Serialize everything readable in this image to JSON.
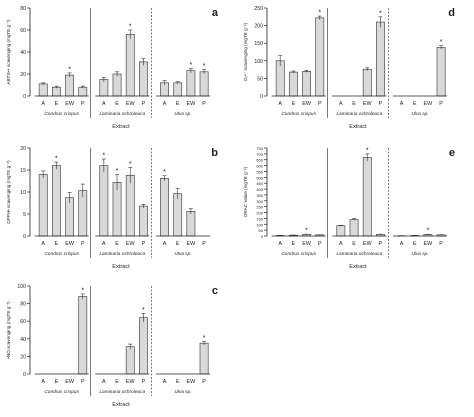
{
  "figure": {
    "colors": {
      "bar": "#d9d9d9",
      "edge": "#333333",
      "axis": "#222222",
      "text": "#222222"
    }
  },
  "chart_data": [
    {
      "id": "a",
      "panel_label": "a",
      "type": "bar",
      "ylabel": "ABTS•+ scavenging (mgTE g⁻¹)",
      "ylim": [
        0,
        80
      ],
      "yticks": [
        0,
        20,
        40,
        60,
        80
      ],
      "categories": [
        "A",
        "E",
        "EW",
        "P",
        "A",
        "E",
        "EW",
        "P",
        "A",
        "E",
        "EW",
        "P"
      ],
      "groups": [
        "Condrus crispus",
        "Laminaria ochroleuca",
        "Ulva sp."
      ],
      "xlabel": "Extract",
      "values": [
        11,
        8,
        19,
        8,
        15,
        20,
        56,
        31,
        12,
        12,
        23,
        22
      ],
      "errors": [
        1,
        1,
        2,
        1,
        2,
        2,
        4,
        3,
        2,
        1,
        2,
        2
      ],
      "significance": [
        false,
        false,
        true,
        false,
        false,
        false,
        true,
        false,
        false,
        false,
        true,
        true
      ]
    },
    {
      "id": "b",
      "panel_label": "b",
      "type": "bar",
      "ylabel": "DPPH• scavenging (mgTE g⁻¹)",
      "ylim": [
        0,
        20
      ],
      "yticks": [
        0,
        5,
        10,
        15,
        20
      ],
      "categories": [
        "A",
        "E",
        "EW",
        "P",
        "A",
        "E",
        "EW",
        "P",
        "A",
        "E",
        "EW",
        "P"
      ],
      "groups": [
        "Condrus crispus",
        "Laminaria ochroleuca",
        "Ulva sp."
      ],
      "xlabel": "Extract",
      "values": [
        14,
        16,
        8.7,
        10.3,
        16,
        12.2,
        13.8,
        6.8,
        13.1,
        9.6,
        5.6,
        0
      ],
      "errors": [
        0.8,
        0.8,
        1.2,
        1.5,
        1.5,
        1.8,
        1.8,
        0.4,
        0.6,
        1.2,
        0.6,
        0
      ],
      "significance": [
        false,
        true,
        false,
        false,
        true,
        true,
        true,
        false,
        true,
        false,
        false,
        false
      ]
    },
    {
      "id": "c",
      "panel_label": "c",
      "type": "bar",
      "ylabel": "•NO scavenging (mgTE g⁻¹)",
      "ylim": [
        0,
        100
      ],
      "yticks": [
        0,
        20,
        40,
        60,
        80,
        100
      ],
      "categories": [
        "A",
        "E",
        "EW",
        "P",
        "A",
        "E",
        "EW",
        "P",
        "A",
        "E",
        "EW",
        "P"
      ],
      "groups": [
        "Condrus crispus",
        "Laminaria ochroleuca",
        "Ulva sp."
      ],
      "xlabel": "Extract",
      "values": [
        0,
        0,
        0,
        88,
        0,
        0,
        31,
        64,
        0,
        0,
        0,
        35
      ],
      "errors": [
        0,
        0,
        0,
        3,
        0,
        0,
        3,
        5,
        0,
        0,
        0,
        2
      ],
      "significance": [
        false,
        false,
        false,
        true,
        false,
        false,
        false,
        true,
        false,
        false,
        false,
        true
      ]
    },
    {
      "id": "d",
      "panel_label": "d",
      "type": "bar",
      "ylabel": "O₂•⁻ scavenging (mgTE g⁻¹)",
      "ylim": [
        0,
        250
      ],
      "yticks": [
        0,
        50,
        100,
        150,
        200,
        250
      ],
      "categories": [
        "A",
        "E",
        "EW",
        "P",
        "A",
        "E",
        "EW",
        "P",
        "A",
        "E",
        "EW",
        "P"
      ],
      "groups": [
        "Condrus crispus",
        "Laminaria ochroleuca",
        "Ulva sp."
      ],
      "xlabel": "Extract",
      "values": [
        100,
        68,
        70,
        222,
        0,
        0,
        76,
        210,
        0,
        0,
        0,
        138
      ],
      "errors": [
        15,
        3,
        3,
        5,
        0,
        0,
        4,
        15,
        0,
        0,
        0,
        5
      ],
      "significance": [
        false,
        false,
        false,
        true,
        false,
        false,
        false,
        true,
        false,
        false,
        false,
        true
      ]
    },
    {
      "id": "e",
      "panel_label": "e",
      "type": "bar",
      "ylabel": "ORAC Value (mgTE g⁻¹)",
      "ylim": [
        0,
        750
      ],
      "yticks": [
        0,
        50,
        100,
        150,
        200,
        250,
        300,
        350,
        400,
        450,
        500,
        550,
        600,
        650,
        700,
        750
      ],
      "categories": [
        "A",
        "E",
        "EW",
        "P",
        "A",
        "E",
        "EW",
        "P",
        "A",
        "E",
        "EW",
        "P"
      ],
      "groups": [
        "Condrus crispus",
        "Laminaria ochroleuca",
        "Ulva sp."
      ],
      "xlabel": "Extract",
      "values": [
        4,
        7,
        14,
        10,
        88,
        140,
        670,
        14,
        2,
        4,
        13,
        10
      ],
      "errors": [
        1,
        1,
        2,
        1,
        3,
        10,
        30,
        2,
        1,
        1,
        2,
        1
      ],
      "significance": [
        false,
        false,
        true,
        false,
        false,
        false,
        true,
        false,
        false,
        false,
        true,
        false
      ]
    }
  ]
}
